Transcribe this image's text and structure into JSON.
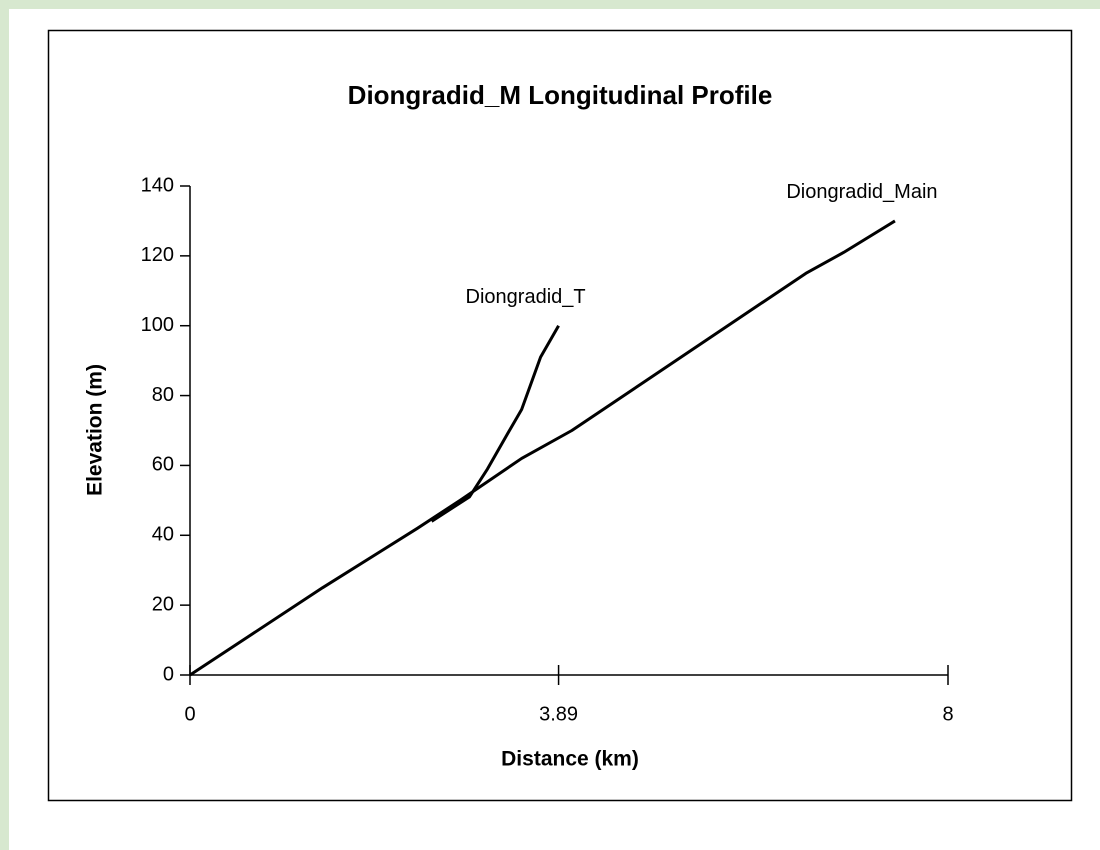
{
  "chart_data": {
    "type": "line",
    "title": "Diongradid_M Longitudinal Profile",
    "x_label": "Distance (km)",
    "y_label": "Elevation (m)",
    "xlim": [
      0,
      8
    ],
    "xticks": [
      0,
      3.89,
      8
    ],
    "ylim": [
      0,
      140
    ],
    "yticks": [
      0,
      20,
      40,
      60,
      80,
      100,
      120,
      140
    ],
    "series": [
      {
        "name": "Diongradid_Main",
        "color": "#000000",
        "x": [
          0,
          1.4,
          2.4,
          2.85,
          3.5,
          4.03,
          6.5,
          6.9,
          7.44
        ],
        "values": [
          0,
          25,
          42,
          50,
          62,
          70,
          115,
          121,
          130
        ]
      },
      {
        "name": "Diongradid_T",
        "color": "#000000",
        "x": [
          2.55,
          2.95,
          3.14,
          3.35,
          3.5,
          3.7,
          3.89
        ],
        "values": [
          44,
          51,
          59,
          69,
          76,
          91,
          100
        ]
      }
    ]
  }
}
